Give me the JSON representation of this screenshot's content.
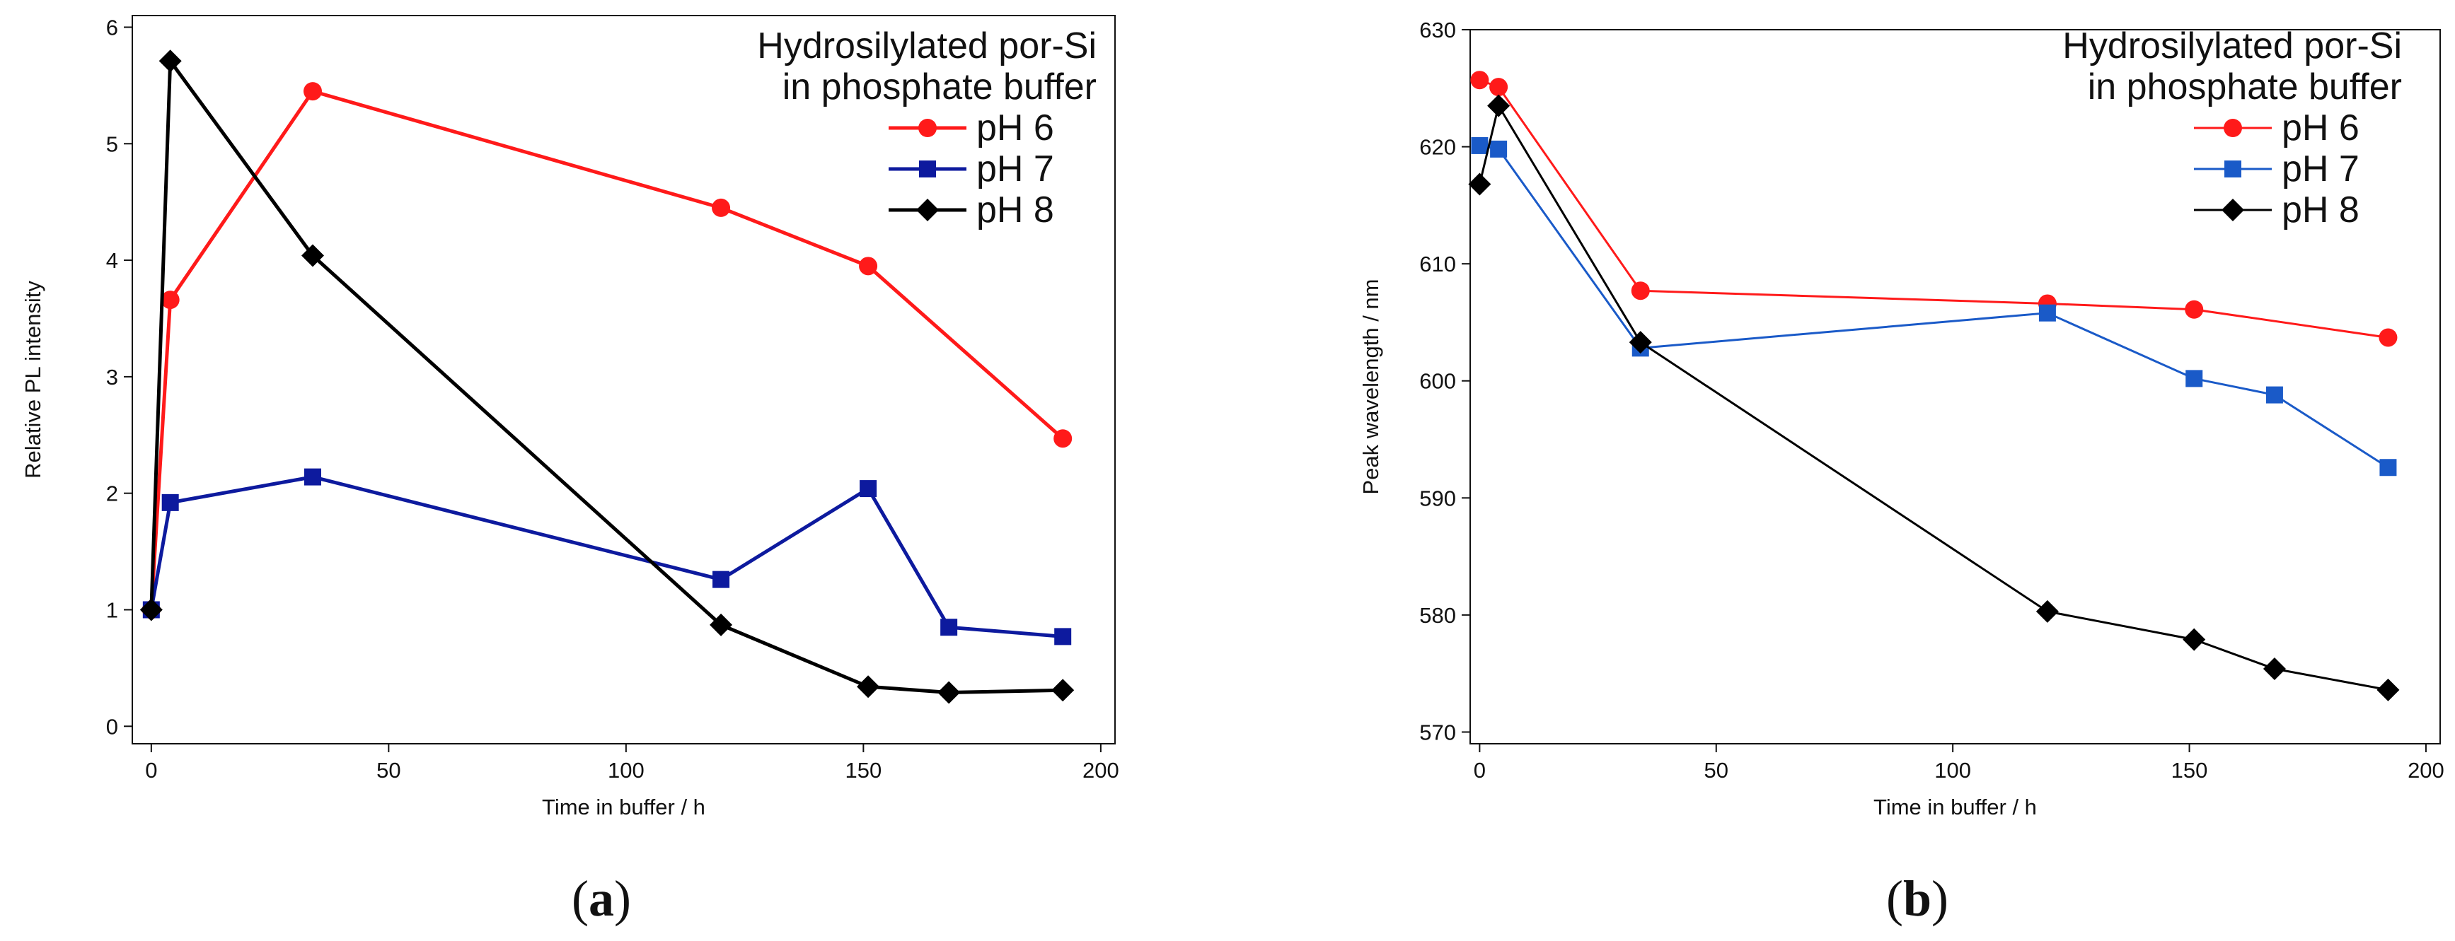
{
  "chart_data": [
    {
      "type": "line",
      "panel_label": "a",
      "xlabel": "Time in buffer / h",
      "ylabel": "Relative PL intensity",
      "xlim": [
        -4,
        203
      ],
      "ylim": [
        -0.15,
        6.1
      ],
      "xticks": [
        0,
        50,
        100,
        150,
        200
      ],
      "yticks": [
        0,
        1,
        2,
        3,
        4,
        5,
        6
      ],
      "legend_title": [
        "Hydrosilylated por-Si",
        "in phosphate buffer"
      ],
      "legend_position": "top-right",
      "grid": false,
      "series": [
        {
          "name": "pH 6",
          "color": "#ff1a1a",
          "marker": "circle",
          "x": [
            0,
            4,
            34,
            120,
            151,
            192
          ],
          "y": [
            1.0,
            3.66,
            5.45,
            4.45,
            3.95,
            2.47
          ]
        },
        {
          "name": "pH 7",
          "color": "#0d1a9e",
          "marker": "square",
          "x": [
            0,
            4,
            34,
            120,
            151,
            168,
            192
          ],
          "y": [
            1.0,
            1.92,
            2.14,
            1.26,
            2.04,
            0.85,
            0.77
          ]
        },
        {
          "name": "pH 8",
          "color": "#000000",
          "marker": "diamond",
          "x": [
            0,
            4,
            34,
            120,
            151,
            168,
            192
          ],
          "y": [
            1.0,
            5.71,
            4.04,
            0.87,
            0.34,
            0.29,
            0.31
          ]
        }
      ]
    },
    {
      "type": "line",
      "panel_label": "b",
      "xlabel": "Time in buffer / h",
      "ylabel": "Peak wavelength / nm",
      "xlim": [
        -2,
        203
      ],
      "ylim": [
        569,
        630
      ],
      "xticks": [
        0,
        50,
        100,
        150,
        200
      ],
      "yticks": [
        570,
        580,
        590,
        600,
        610,
        620,
        630
      ],
      "legend_title": [
        "Hydrosilylated por-Si",
        "in phosphate buffer"
      ],
      "legend_position": "top-right",
      "grid": false,
      "series": [
        {
          "name": "pH 6",
          "color": "#ff1a1a",
          "marker": "circle",
          "x": [
            0,
            4,
            34,
            120,
            151,
            192
          ],
          "y": [
            625.7,
            625.1,
            607.7,
            606.6,
            606.1,
            603.7
          ]
        },
        {
          "name": "pH 7",
          "color": "#1a5ac8",
          "marker": "square",
          "x": [
            0,
            4,
            34,
            120,
            151,
            168,
            192
          ],
          "y": [
            620.1,
            619.8,
            602.8,
            605.8,
            600.2,
            598.8,
            592.6
          ]
        },
        {
          "name": "pH 8",
          "color": "#000000",
          "marker": "diamond",
          "x": [
            0,
            4,
            34,
            120,
            151,
            168,
            192
          ],
          "y": [
            616.8,
            623.5,
            603.3,
            580.3,
            577.9,
            575.4,
            573.6
          ]
        }
      ]
    }
  ],
  "captions": {
    "a": {
      "open": "(",
      "letter": "a",
      "close": ")"
    },
    "b": {
      "open": "(",
      "letter": "b",
      "close": ")"
    }
  }
}
